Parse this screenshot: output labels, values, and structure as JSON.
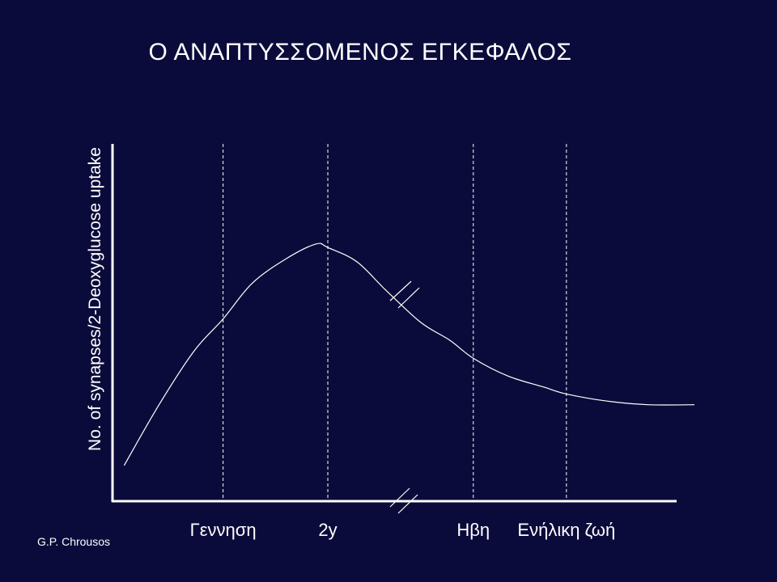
{
  "slide": {
    "title": "Ο ΑΝΑΠΤΥΣΣΟΜΕΝΟΣ ΕΓΚΕΦΑΛΟΣ",
    "credit": "G.P. Chrousos"
  },
  "colors": {
    "background": "#0b0b3b",
    "foreground": "#ffffff"
  },
  "chart_data": {
    "type": "line",
    "title": "Ο ΑΝΑΠΤΥΣΣΟΜΕΝΟΣ ΕΓΚΕΦΑΛΟΣ",
    "xlabel": "",
    "ylabel": "No. of synapses/2-Deoxyglucose uptake",
    "xlim": [
      0,
      100
    ],
    "ylim": [
      0,
      100
    ],
    "grid": false,
    "axis_break": true,
    "markers": [
      {
        "label": "Γεννηση",
        "x": 19
      },
      {
        "label": "2y",
        "x": 37
      },
      {
        "label": "Ηβη",
        "x": 62
      },
      {
        "label": "Ενήλικη ζωή",
        "x": 78
      }
    ],
    "series": [
      {
        "values": [
          [
            2,
            10
          ],
          [
            8,
            27
          ],
          [
            14,
            42
          ],
          [
            19,
            51
          ],
          [
            24,
            61
          ],
          [
            30,
            68
          ],
          [
            35,
            72
          ],
          [
            37,
            71
          ],
          [
            42,
            67
          ],
          [
            47,
            59
          ],
          [
            53,
            50
          ],
          [
            58,
            45
          ],
          [
            62,
            40
          ],
          [
            68,
            35
          ],
          [
            74,
            32
          ],
          [
            78,
            30
          ],
          [
            85,
            28
          ],
          [
            92,
            27
          ],
          [
            100,
            27
          ]
        ]
      }
    ]
  }
}
